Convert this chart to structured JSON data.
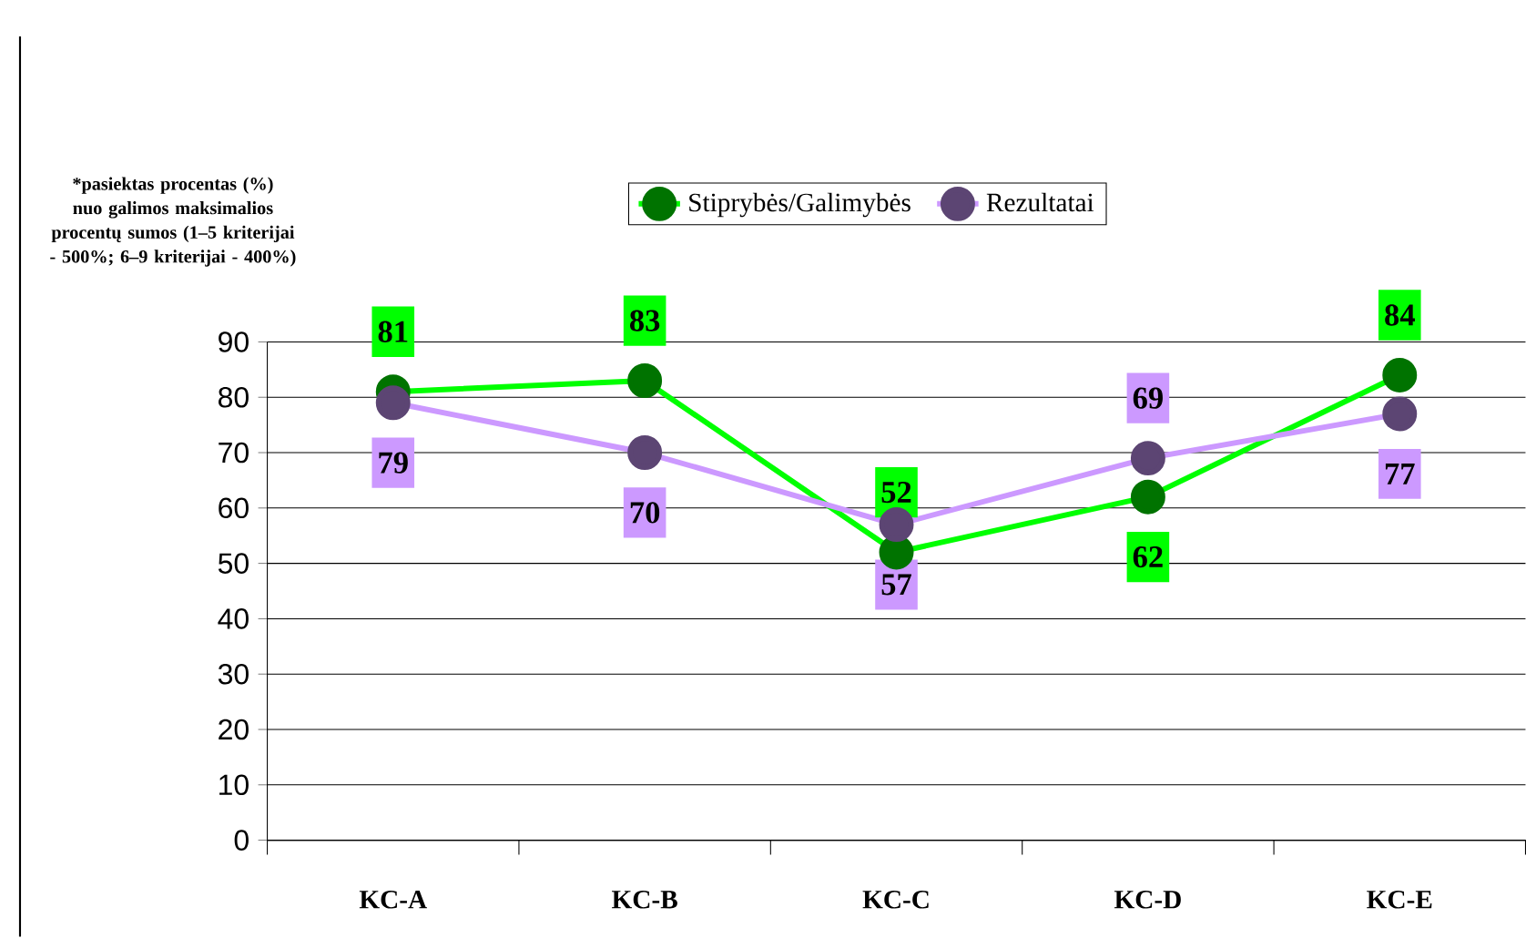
{
  "chart_data": {
    "type": "line",
    "ylabel": "*pasiektas procentas (%) nuo galimos maksimalios procentų sumos (1–5 kriterijai - 500%; 6–9 kriterijai - 400%)",
    "categories": [
      "KC-A",
      "KC-B",
      "KC-C",
      "KC-D",
      "KC-E"
    ],
    "series": [
      {
        "name": "Stiprybės/Galimybės",
        "color": "#00ff00",
        "values": [
          81,
          83,
          52,
          62,
          84
        ]
      },
      {
        "name": "Rezultatai",
        "color": "#cc99ff",
        "values": [
          79,
          70,
          57,
          69,
          77
        ]
      }
    ],
    "ylim": [
      0,
      90
    ],
    "yticks": [
      0,
      10,
      20,
      30,
      40,
      50,
      60,
      70,
      80,
      90
    ],
    "grid": "y",
    "legend": "top",
    "marker": "circle",
    "data_labels": true
  }
}
